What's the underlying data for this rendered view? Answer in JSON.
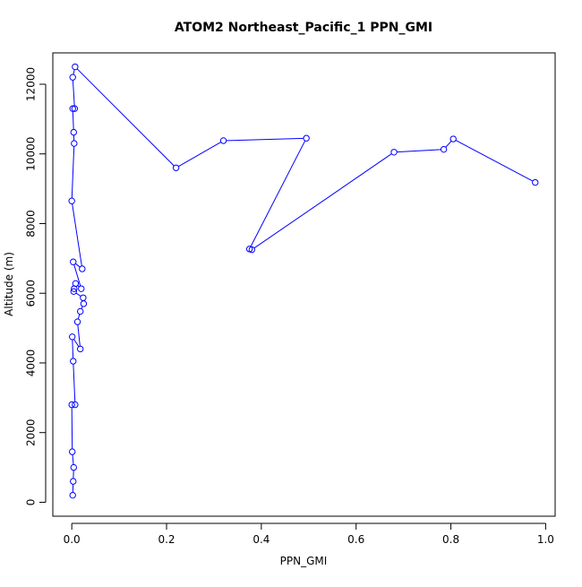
{
  "chart_data": {
    "type": "scatter",
    "title": "ATOM2 Northeast_Pacific_1 PPN_GMI",
    "xlabel": "PPN_GMI",
    "ylabel": "Altitude (m)",
    "xlim": [
      -0.04,
      1.02
    ],
    "ylim": [
      -400,
      12900
    ],
    "x_ticks": [
      0.0,
      0.2,
      0.4,
      0.6,
      0.8,
      1.0
    ],
    "x_tick_labels": [
      "0.0",
      "0.2",
      "0.4",
      "0.6",
      "0.8",
      "1.0"
    ],
    "y_ticks": [
      0,
      2000,
      4000,
      6000,
      8000,
      10000,
      12000
    ],
    "y_tick_labels": [
      "0",
      "2000",
      "4000",
      "6000",
      "8000",
      "10000",
      "12000"
    ],
    "grid": false,
    "legend": "none",
    "color": "#0000ff",
    "series": [
      {
        "values": [
          [
            0.002,
            200
          ],
          [
            0.003,
            600
          ],
          [
            0.004,
            1000
          ],
          [
            0.001,
            1450
          ],
          [
            0.0,
            2800
          ],
          [
            0.007,
            2800
          ],
          [
            0.003,
            4050
          ],
          [
            0.001,
            4750
          ],
          [
            0.018,
            4400
          ],
          [
            0.012,
            5180
          ],
          [
            0.018,
            5480
          ],
          [
            0.025,
            5700
          ],
          [
            0.024,
            5870
          ],
          [
            0.004,
            6050
          ],
          [
            0.005,
            6130
          ],
          [
            0.008,
            6280
          ],
          [
            0.02,
            6130
          ],
          [
            0.003,
            6900
          ],
          [
            0.022,
            6700
          ],
          [
            0.0,
            8650
          ],
          [
            0.005,
            10300
          ],
          [
            0.004,
            10620
          ],
          [
            0.002,
            11300
          ],
          [
            0.006,
            11300
          ],
          [
            0.002,
            12200
          ],
          [
            0.007,
            12500
          ],
          [
            0.22,
            9600
          ],
          [
            0.32,
            10380
          ],
          [
            0.495,
            10450
          ],
          [
            0.375,
            7270
          ],
          [
            0.38,
            7250
          ],
          [
            0.68,
            10050
          ],
          [
            0.785,
            10130
          ],
          [
            0.805,
            10430
          ],
          [
            0.978,
            9180
          ]
        ]
      }
    ]
  }
}
